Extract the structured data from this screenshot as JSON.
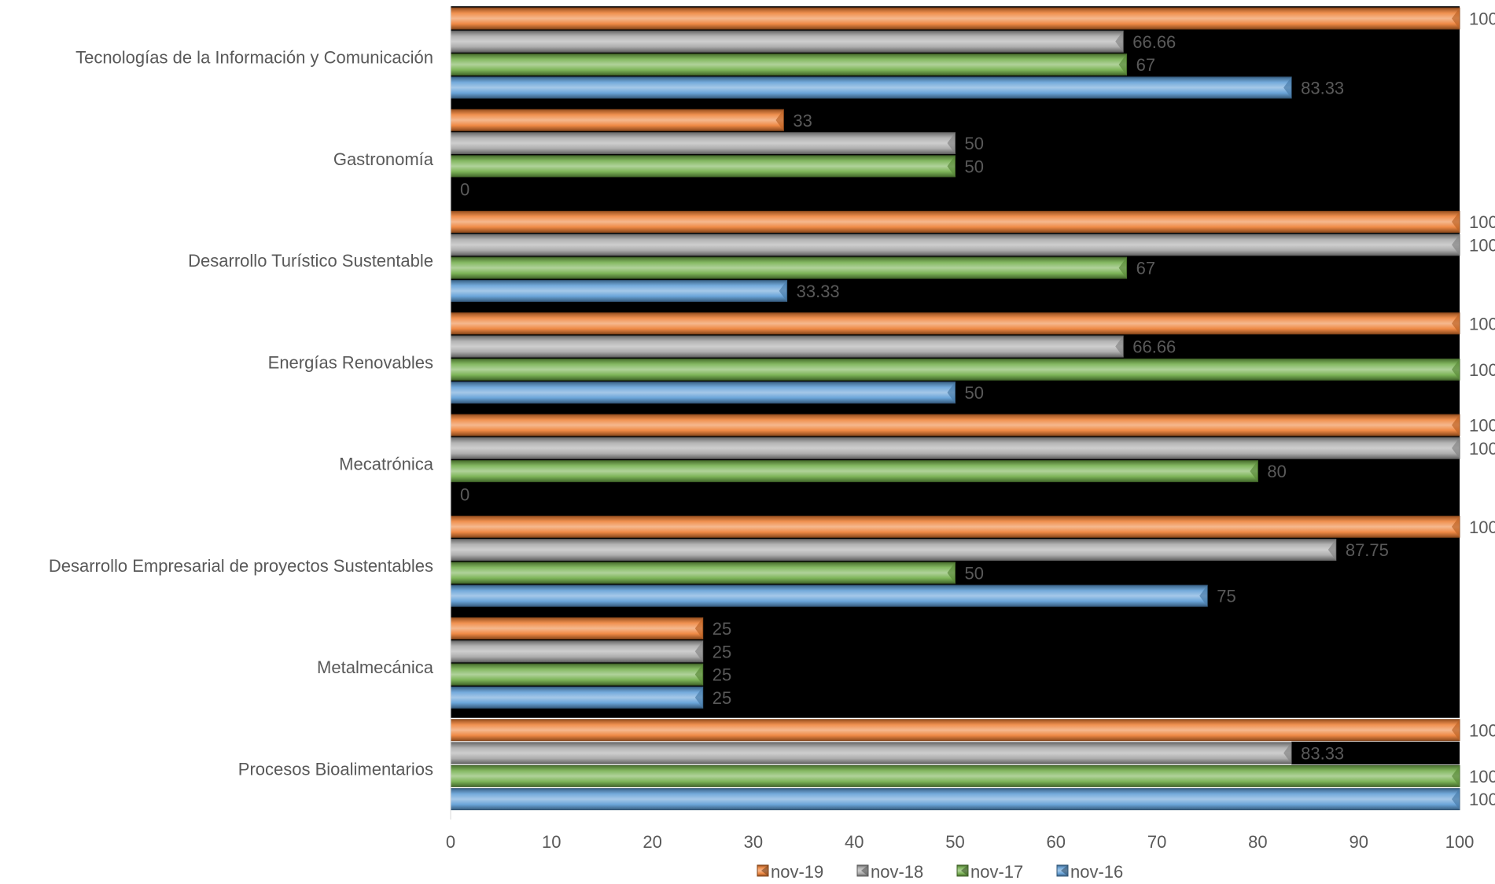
{
  "chart_data": {
    "type": "bar",
    "orientation": "horizontal",
    "categories": [
      "Tecnologías de la Información y Comunicación",
      "Gastronomía",
      "Desarrollo Turístico Sustentable",
      "Energías Renovables",
      "Mecatrónica",
      "Desarrollo Empresarial de proyectos Sustentables",
      "Metalmecánica",
      "Procesos Bioalimentarios"
    ],
    "series": [
      {
        "name": "nov-19",
        "color": "#ED7D31",
        "values": [
          100,
          33,
          100,
          100,
          100,
          100,
          25,
          100
        ]
      },
      {
        "name": "nov-18",
        "color": "#A5A5A5",
        "values": [
          66.66,
          50,
          100,
          66.66,
          100,
          87.75,
          25,
          83.33
        ]
      },
      {
        "name": "nov-17",
        "color": "#70AD47",
        "values": [
          67,
          50,
          67,
          100,
          80,
          50,
          25,
          100
        ]
      },
      {
        "name": "nov-16",
        "color": "#5B9BD5",
        "values": [
          83.33,
          0,
          33.33,
          50,
          0,
          75,
          25,
          100
        ]
      }
    ],
    "xlim": [
      0,
      100
    ],
    "xticks": [
      0,
      10,
      20,
      30,
      40,
      50,
      60,
      70,
      80,
      90,
      100
    ],
    "legend_position": "bottom",
    "data_labels": true
  }
}
